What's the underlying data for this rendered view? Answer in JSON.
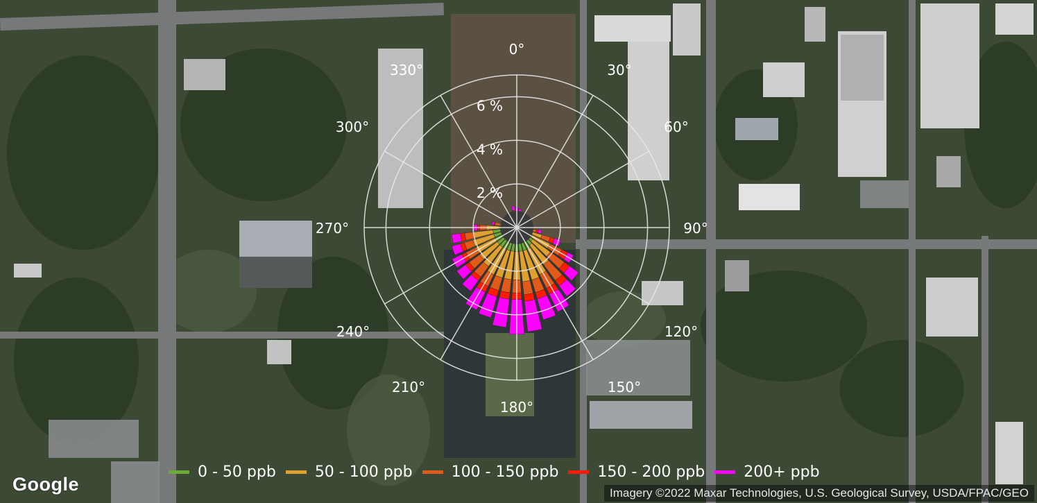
{
  "map": {
    "logo": "Google",
    "attribution": "Imagery ©2022 Maxar Technologies, U.S. Geological Survey, USDA/FPAC/GEO"
  },
  "rose": {
    "direction_labels": [
      "0°",
      "30°",
      "60°",
      "90°",
      "120°",
      "150°",
      "180°",
      "210°",
      "240°",
      "270°",
      "300°",
      "330°"
    ],
    "percent_rings": [
      2,
      4,
      6,
      7
    ],
    "percent_labels": [
      "2 %",
      "4 %",
      "6 %"
    ]
  },
  "legend": {
    "items": [
      {
        "label": "0 - 50 ppb",
        "color": "#6aaa3a"
      },
      {
        "label": "50 - 100 ppb",
        "color": "#e0a030"
      },
      {
        "label": "100 - 150 ppb",
        "color": "#e05a1a"
      },
      {
        "label": "150 - 200 ppb",
        "color": "#ff1a00"
      },
      {
        "label": "200+ ppb",
        "color": "#ff00ff"
      }
    ]
  },
  "chart_data": {
    "type": "polar-stacked-bar",
    "unit": "%",
    "rmax": 7,
    "bin_width_deg": 8,
    "categories": [
      "0 - 50 ppb",
      "50 - 100 ppb",
      "100 - 150 ppb",
      "150 - 200 ppb",
      "200+ ppb"
    ],
    "colors": [
      "#6aaa3a",
      "#e0a030",
      "#e05a1a",
      "#ff1a00",
      "#ff00ff"
    ],
    "bins": [
      {
        "dir": 0,
        "values": [
          0.3,
          0.2,
          0.1,
          0.1,
          0.2
        ]
      },
      {
        "dir": 10,
        "values": [
          0.3,
          0.2,
          0.1,
          0.05,
          0.2
        ]
      },
      {
        "dir": 20,
        "values": [
          0.2,
          0.2,
          0.1,
          0.05,
          0.1
        ]
      },
      {
        "dir": 30,
        "values": [
          0.2,
          0.1,
          0.1,
          0.05,
          0.1
        ]
      },
      {
        "dir": 40,
        "values": [
          0.15,
          0.1,
          0.05,
          0.05,
          0.05
        ]
      },
      {
        "dir": 50,
        "values": [
          0.15,
          0.1,
          0.05,
          0.05,
          0.05
        ]
      },
      {
        "dir": 60,
        "values": [
          0.15,
          0.1,
          0.05,
          0.05,
          0.05
        ]
      },
      {
        "dir": 70,
        "values": [
          0.15,
          0.1,
          0.05,
          0.05,
          0.05
        ]
      },
      {
        "dir": 80,
        "values": [
          0.2,
          0.1,
          0.05,
          0.05,
          0.05
        ]
      },
      {
        "dir": 90,
        "values": [
          0.3,
          0.2,
          0.1,
          0.05,
          0.1
        ]
      },
      {
        "dir": 100,
        "values": [
          0.4,
          0.3,
          0.2,
          0.1,
          0.15
        ]
      },
      {
        "dir": 110,
        "values": [
          0.6,
          0.6,
          0.4,
          0.2,
          0.3
        ]
      },
      {
        "dir": 120,
        "values": [
          0.8,
          0.9,
          0.6,
          0.3,
          0.3
        ]
      },
      {
        "dir": 130,
        "values": [
          0.9,
          1.0,
          0.8,
          0.3,
          0.5
        ]
      },
      {
        "dir": 140,
        "values": [
          1.0,
          1.1,
          0.9,
          0.3,
          0.6
        ]
      },
      {
        "dir": 150,
        "values": [
          1.1,
          1.3,
          0.7,
          0.3,
          0.9
        ]
      },
      {
        "dir": 160,
        "values": [
          1.1,
          1.4,
          0.6,
          0.3,
          1.0
        ]
      },
      {
        "dir": 170,
        "values": [
          1.1,
          1.4,
          0.6,
          0.3,
          1.4
        ]
      },
      {
        "dir": 180,
        "values": [
          1.1,
          1.3,
          0.6,
          0.3,
          1.6
        ]
      },
      {
        "dir": 190,
        "values": [
          1.1,
          1.3,
          0.6,
          0.3,
          1.3
        ]
      },
      {
        "dir": 200,
        "values": [
          1.1,
          1.3,
          0.6,
          0.3,
          1.0
        ]
      },
      {
        "dir": 210,
        "values": [
          1.1,
          1.3,
          0.6,
          0.3,
          0.9
        ]
      },
      {
        "dir": 220,
        "values": [
          1.1,
          1.1,
          0.6,
          0.2,
          0.6
        ]
      },
      {
        "dir": 230,
        "values": [
          1.1,
          1.0,
          0.6,
          0.2,
          0.5
        ]
      },
      {
        "dir": 240,
        "values": [
          1.1,
          1.0,
          0.5,
          0.2,
          0.5
        ]
      },
      {
        "dir": 250,
        "values": [
          1.1,
          1.0,
          0.4,
          0.2,
          0.4
        ]
      },
      {
        "dir": 260,
        "values": [
          1.1,
          0.9,
          0.4,
          0.2,
          0.4
        ]
      },
      {
        "dir": 270,
        "values": [
          0.8,
          0.6,
          0.3,
          0.1,
          0.2
        ]
      },
      {
        "dir": 280,
        "values": [
          0.5,
          0.3,
          0.2,
          0.05,
          0.1
        ]
      },
      {
        "dir": 290,
        "values": [
          0.3,
          0.2,
          0.1,
          0.05,
          0.05
        ]
      },
      {
        "dir": 300,
        "values": [
          0.3,
          0.2,
          0.1,
          0.05,
          0.05
        ]
      },
      {
        "dir": 310,
        "values": [
          0.3,
          0.2,
          0.1,
          0.05,
          0.05
        ]
      },
      {
        "dir": 320,
        "values": [
          0.3,
          0.2,
          0.1,
          0.05,
          0.05
        ]
      },
      {
        "dir": 330,
        "values": [
          0.3,
          0.2,
          0.1,
          0.05,
          0.1
        ]
      },
      {
        "dir": 340,
        "values": [
          0.3,
          0.2,
          0.1,
          0.05,
          0.1
        ]
      },
      {
        "dir": 350,
        "values": [
          0.3,
          0.3,
          0.1,
          0.1,
          0.2
        ]
      }
    ]
  }
}
